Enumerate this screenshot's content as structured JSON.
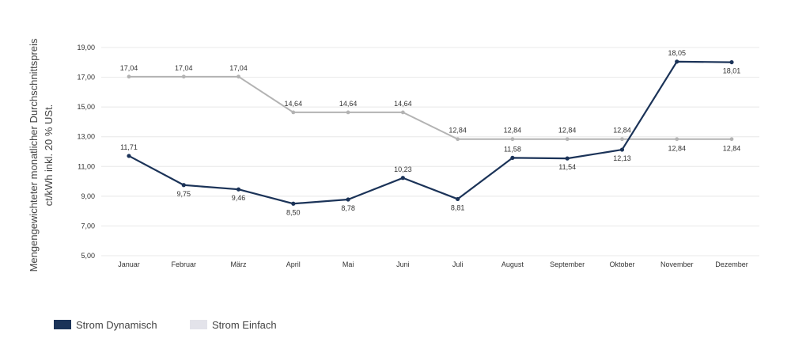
{
  "chart_data": {
    "type": "line",
    "title": "",
    "xlabel": "",
    "ylabel": [
      "Mengengewichteter monatlicher Durchschnittspreis",
      "ct/kWh inkl. 20 % USt."
    ],
    "categories": [
      "Januar",
      "Februar",
      "März",
      "April",
      "Mai",
      "Juni",
      "Juli",
      "August",
      "September",
      "Oktober",
      "November",
      "Dezember"
    ],
    "ylim": [
      5,
      19
    ],
    "yticks": [
      "5,00",
      "7,00",
      "9,00",
      "11,00",
      "13,00",
      "15,00",
      "17,00",
      "19,00"
    ],
    "grid": true,
    "legend_position": "bottom-left",
    "series": [
      {
        "name": "Strom Dynamisch",
        "color": "#1b3358",
        "values": [
          11.71,
          9.75,
          9.46,
          8.5,
          8.78,
          10.23,
          8.81,
          11.58,
          11.54,
          12.13,
          18.05,
          18.01
        ],
        "labels": [
          "11,71",
          "9,75",
          "9,46",
          "8,50",
          "8,78",
          "10,23",
          "8,81",
          "11,58",
          "11,54",
          "12,13",
          "18,05",
          "18,01"
        ]
      },
      {
        "name": "Strom Einfach",
        "color": "#b3b3b3",
        "legend_color": "#e3e3ea",
        "values": [
          17.04,
          17.04,
          17.04,
          14.64,
          14.64,
          14.64,
          12.84,
          12.84,
          12.84,
          12.84,
          12.84,
          12.84
        ],
        "labels": [
          "17,04",
          "17,04",
          "17,04",
          "14,64",
          "14,64",
          "14,64",
          "12,84",
          "12,84",
          "12,84",
          "12,84",
          "12,84",
          "12,84"
        ]
      }
    ]
  }
}
